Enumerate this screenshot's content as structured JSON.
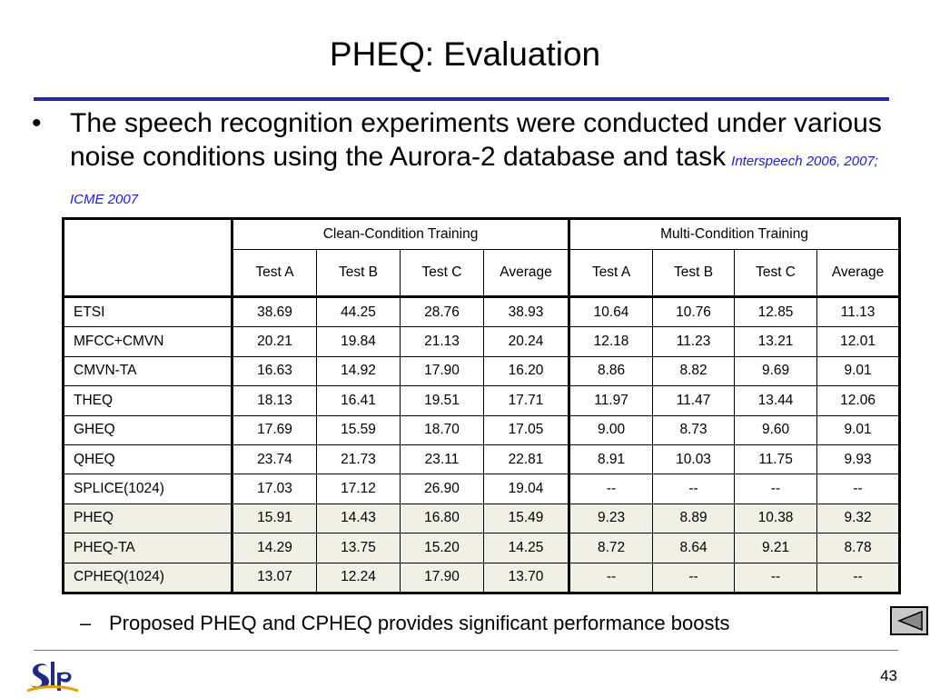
{
  "slide": {
    "title": "PHEQ: Evaluation",
    "bullet_text": "The speech recognition experiments were conducted under various noise conditions using the Aurora-2 database and task",
    "citation": "Interspeech 2006, 2007; ICME 2007",
    "sub_bullet": "Proposed PHEQ and CPHEQ provides significant performance boosts",
    "page_number": "43",
    "logo_text": "SLP",
    "accent_color": "#2727a7",
    "citation_color": "#1c1ccc",
    "highlight_row_color": "#f0f0e4"
  },
  "table": {
    "group_headers": [
      "Clean-Condition Training",
      "Multi-Condition Training"
    ],
    "sub_headers": [
      "Test A",
      "Test B",
      "Test C",
      "Average",
      "Test A",
      "Test B",
      "Test C",
      "Average"
    ],
    "rows": [
      {
        "name": "ETSI",
        "values": [
          "38.69",
          "44.25",
          "28.76",
          "38.93",
          "10.64",
          "10.76",
          "12.85",
          "11.13"
        ]
      },
      {
        "name": "MFCC+CMVN",
        "values": [
          "20.21",
          "19.84",
          "21.13",
          "20.24",
          "12.18",
          "11.23",
          "13.21",
          "12.01"
        ]
      },
      {
        "name": "CMVN-TA",
        "values": [
          "16.63",
          "14.92",
          "17.90",
          "16.20",
          "8.86",
          "8.82",
          "9.69",
          "9.01"
        ]
      },
      {
        "name": "THEQ",
        "values": [
          "18.13",
          "16.41",
          "19.51",
          "17.71",
          "11.97",
          "11.47",
          "13.44",
          "12.06"
        ]
      },
      {
        "name": "GHEQ",
        "values": [
          "17.69",
          "15.59",
          "18.70",
          "17.05",
          "9.00",
          "8.73",
          "9.60",
          "9.01"
        ]
      },
      {
        "name": "QHEQ",
        "values": [
          "23.74",
          "21.73",
          "23.11",
          "22.81",
          "8.91",
          "10.03",
          "11.75",
          "9.93"
        ]
      },
      {
        "name": "SPLICE(1024)",
        "values": [
          "17.03",
          "17.12",
          "26.90",
          "19.04",
          "--",
          "--",
          "--",
          "--"
        ]
      },
      {
        "name": "PHEQ",
        "values": [
          "15.91",
          "14.43",
          "16.80",
          "15.49",
          "9.23",
          "8.89",
          "10.38",
          "9.32"
        ],
        "highlight": true
      },
      {
        "name": "PHEQ-TA",
        "values": [
          "14.29",
          "13.75",
          "15.20",
          "14.25",
          "8.72",
          "8.64",
          "9.21",
          "8.78"
        ],
        "highlight": true
      },
      {
        "name": "CPHEQ(1024)",
        "values": [
          "13.07",
          "12.24",
          "17.90",
          "13.70",
          "--",
          "--",
          "--",
          "--"
        ],
        "highlight": true
      }
    ]
  },
  "navigation": {
    "back_icon": "triangle-left-icon"
  }
}
